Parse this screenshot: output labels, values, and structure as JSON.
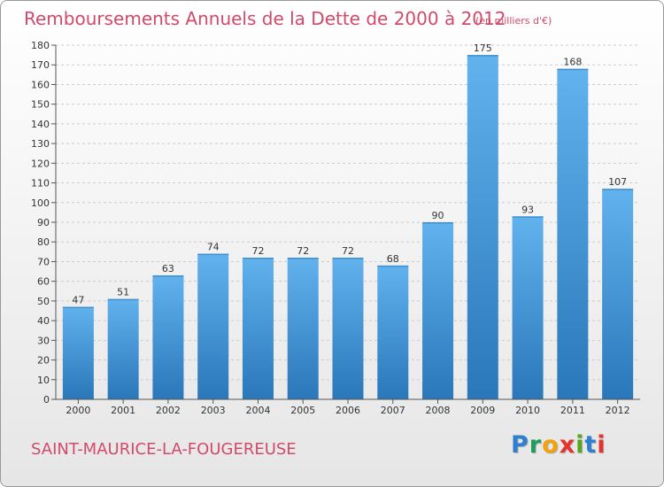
{
  "title": "Remboursements Annuels de la Dette de 2000 à 2012",
  "subtitle": "(en milliers d'€)",
  "city": "SAINT-MAURICE-LA-FOUGEREUSE",
  "logo": {
    "letters": [
      "P",
      "r",
      "o",
      "x",
      "i",
      "t",
      "i"
    ],
    "colors": [
      "#2f7fd1",
      "#1f9e5b",
      "#f2a20c",
      "#e4342d",
      "#5aa51f",
      "#2f7fd1",
      "#e4342d"
    ]
  },
  "colors": {
    "bar_top": "#62b2ee",
    "bar_bottom": "#2a77b9",
    "accent": "#d24a6b",
    "grid": "#cccccc"
  },
  "chart_data": {
    "type": "bar",
    "categories": [
      "2000",
      "2001",
      "2002",
      "2003",
      "2004",
      "2005",
      "2006",
      "2007",
      "2008",
      "2009",
      "2010",
      "2011",
      "2012"
    ],
    "values": [
      47,
      51,
      63,
      74,
      72,
      72,
      72,
      68,
      90,
      175,
      93,
      168,
      107
    ],
    "data_labels": [
      "47",
      "51",
      "63",
      "74",
      "72",
      "72",
      "72",
      "68",
      "90",
      "175",
      "93",
      "168",
      "107"
    ],
    "ylim": [
      0,
      180
    ],
    "yticks": [
      0,
      10,
      20,
      30,
      40,
      50,
      60,
      70,
      80,
      90,
      100,
      110,
      120,
      130,
      140,
      150,
      160,
      170,
      180
    ],
    "grid": true
  }
}
